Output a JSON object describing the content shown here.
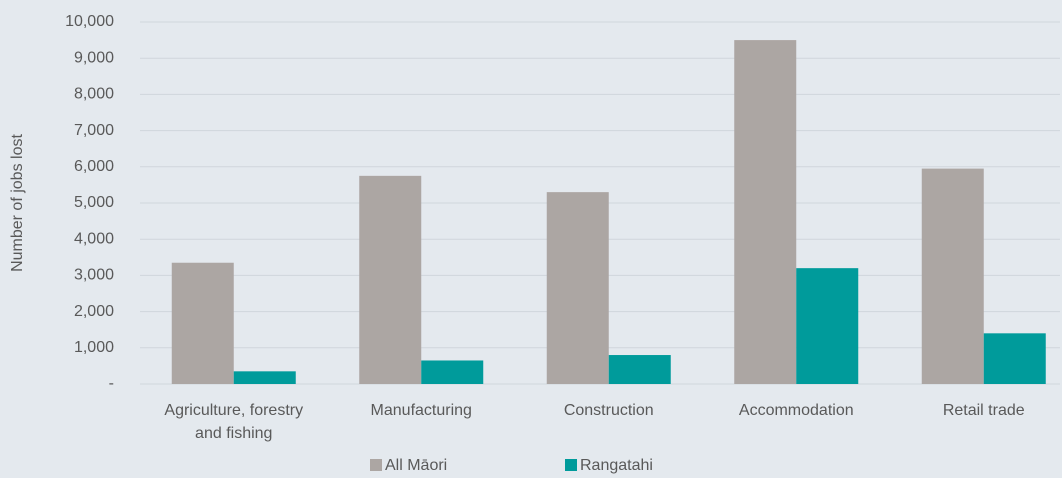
{
  "chart_data": {
    "type": "bar",
    "y_label": "Number of jobs lost",
    "categories": [
      "Agriculture, forestry and fishing",
      "Manufacturing",
      "Construction",
      "Accommodation",
      "Retail trade"
    ],
    "series": [
      {
        "name": "All Māori",
        "color": "#aca6a3",
        "values": [
          3350,
          5750,
          5300,
          9500,
          5950
        ]
      },
      {
        "name": "Rangatahi",
        "color": "#009b9b",
        "values": [
          350,
          650,
          800,
          3200,
          1400
        ]
      }
    ],
    "ylim": [
      0,
      10000
    ],
    "yticks": [
      {
        "value": 0,
        "label": "-"
      },
      {
        "value": 1000,
        "label": "1,000"
      },
      {
        "value": 2000,
        "label": "2,000"
      },
      {
        "value": 3000,
        "label": "3,000"
      },
      {
        "value": 4000,
        "label": "4,000"
      },
      {
        "value": 5000,
        "label": "5,000"
      },
      {
        "value": 6000,
        "label": "6,000"
      },
      {
        "value": 7000,
        "label": "7,000"
      },
      {
        "value": 8000,
        "label": "8,000"
      },
      {
        "value": 9000,
        "label": "9,000"
      },
      {
        "value": 10000,
        "label": "10,000"
      }
    ],
    "grid": true,
    "legend": "bottom"
  }
}
